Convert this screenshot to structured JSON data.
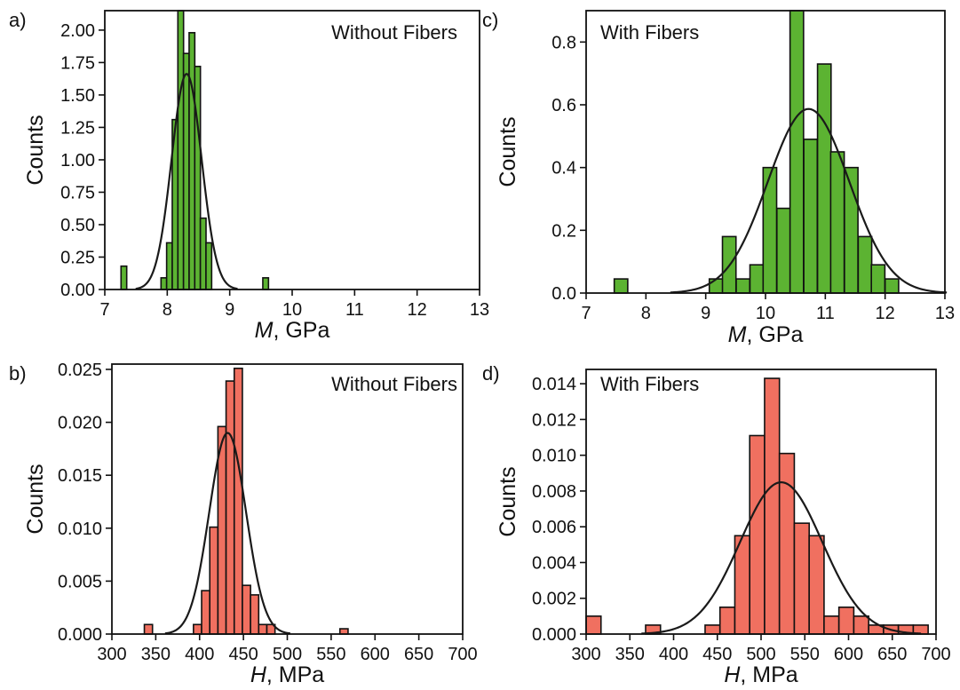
{
  "chart_data": [
    {
      "type": "bar",
      "panel_label": "a)",
      "title": "Without Fibers",
      "xlabel_var": "M",
      "xlabel_unit": ", GPa",
      "ylabel": "Counts",
      "xlim": [
        7,
        13
      ],
      "ylim": [
        0,
        2.15
      ],
      "xticks": [
        7,
        8,
        9,
        10,
        11,
        12,
        13
      ],
      "yticks": [
        0.0,
        0.25,
        0.5,
        0.75,
        1.0,
        1.25,
        1.5,
        1.75,
        2.0
      ],
      "ytick_labels": [
        "0.00",
        "0.25",
        "0.50",
        "0.75",
        "1.00",
        "1.25",
        "1.50",
        "1.75",
        "2.00"
      ],
      "bar_color": "#5cb332",
      "bin_width": 0.091,
      "bins": [
        {
          "x": 7.26,
          "y": 0.18
        },
        {
          "x": 7.9,
          "y": 0.09
        },
        {
          "x": 7.99,
          "y": 0.36
        },
        {
          "x": 8.08,
          "y": 1.31
        },
        {
          "x": 8.17,
          "y": 2.22
        },
        {
          "x": 8.26,
          "y": 1.82
        },
        {
          "x": 8.35,
          "y": 1.98
        },
        {
          "x": 8.44,
          "y": 1.72
        },
        {
          "x": 8.53,
          "y": 0.55
        },
        {
          "x": 8.62,
          "y": 0.36
        },
        {
          "x": 9.53,
          "y": 0.09
        }
      ],
      "fit": {
        "mean": 8.31,
        "sd": 0.24
      }
    },
    {
      "type": "bar",
      "panel_label": "c)",
      "title": "With Fibers",
      "xlabel_var": "M",
      "xlabel_unit": ", GPa",
      "ylabel": "Counts",
      "xlim": [
        7,
        13
      ],
      "ylim": [
        0,
        0.9
      ],
      "xticks": [
        7,
        8,
        9,
        10,
        11,
        12,
        13
      ],
      "yticks": [
        0.0,
        0.2,
        0.4,
        0.6,
        0.8
      ],
      "ytick_labels": [
        "0.0",
        "0.2",
        "0.4",
        "0.6",
        "0.8"
      ],
      "bar_color": "#5cb332",
      "bin_width": 0.226,
      "bins": [
        {
          "x": 7.47,
          "y": 0.045
        },
        {
          "x": 9.06,
          "y": 0.045
        },
        {
          "x": 9.28,
          "y": 0.18
        },
        {
          "x": 9.51,
          "y": 0.045
        },
        {
          "x": 9.74,
          "y": 0.09
        },
        {
          "x": 9.96,
          "y": 0.4
        },
        {
          "x": 10.19,
          "y": 0.27
        },
        {
          "x": 10.41,
          "y": 0.91
        },
        {
          "x": 10.64,
          "y": 0.49
        },
        {
          "x": 10.87,
          "y": 0.73
        },
        {
          "x": 11.09,
          "y": 0.45
        },
        {
          "x": 11.32,
          "y": 0.4
        },
        {
          "x": 11.55,
          "y": 0.18
        },
        {
          "x": 11.77,
          "y": 0.09
        },
        {
          "x": 12.0,
          "y": 0.045
        }
      ],
      "fit": {
        "mean": 10.72,
        "sd": 0.68
      }
    },
    {
      "type": "bar",
      "panel_label": "b)",
      "title": "Without Fibers",
      "xlabel_var": "H",
      "xlabel_unit": ", MPa",
      "ylabel": "Counts",
      "xlim": [
        300,
        700
      ],
      "ylim": [
        0,
        0.0255
      ],
      "xticks": [
        300,
        350,
        400,
        450,
        500,
        550,
        600,
        650,
        700
      ],
      "yticks": [
        0.0,
        0.005,
        0.01,
        0.015,
        0.02,
        0.025
      ],
      "ytick_labels": [
        "0.000",
        "0.005",
        "0.010",
        "0.015",
        "0.020",
        "0.025"
      ],
      "bar_color": "#f07060",
      "bin_width": 9.3,
      "bins": [
        {
          "x": 337.0,
          "y": 0.0009
        },
        {
          "x": 393.0,
          "y": 0.0009
        },
        {
          "x": 402.3,
          "y": 0.0041
        },
        {
          "x": 411.6,
          "y": 0.0101
        },
        {
          "x": 420.9,
          "y": 0.0196
        },
        {
          "x": 430.2,
          "y": 0.0239
        },
        {
          "x": 439.5,
          "y": 0.0251
        },
        {
          "x": 448.8,
          "y": 0.0046
        },
        {
          "x": 458.1,
          "y": 0.0037
        },
        {
          "x": 467.4,
          "y": 0.0009
        },
        {
          "x": 476.7,
          "y": 0.0009
        },
        {
          "x": 560.0,
          "y": 0.0005
        }
      ],
      "fit": {
        "mean": 432.0,
        "sd": 21.0
      }
    },
    {
      "type": "bar",
      "panel_label": "d)",
      "title": "With Fibers",
      "xlabel_var": "H",
      "xlabel_unit": ", MPa",
      "ylabel": "Counts",
      "xlim": [
        300,
        700
      ],
      "ylim": [
        0,
        0.0148
      ],
      "xticks": [
        300,
        350,
        400,
        450,
        500,
        550,
        600,
        650,
        700
      ],
      "yticks": [
        0.0,
        0.002,
        0.004,
        0.006,
        0.008,
        0.01,
        0.012,
        0.014
      ],
      "ytick_labels": [
        "0.000",
        "0.002",
        "0.004",
        "0.006",
        "0.008",
        "0.010",
        "0.012",
        "0.014"
      ],
      "bar_color": "#f07060",
      "bin_width": 17.0,
      "bins": [
        {
          "x": 300.0,
          "y": 0.001
        },
        {
          "x": 368.0,
          "y": 0.0005
        },
        {
          "x": 436.0,
          "y": 0.0005
        },
        {
          "x": 453.0,
          "y": 0.0015
        },
        {
          "x": 470.0,
          "y": 0.0055
        },
        {
          "x": 487.0,
          "y": 0.0111
        },
        {
          "x": 504.0,
          "y": 0.0143
        },
        {
          "x": 521.0,
          "y": 0.0101
        },
        {
          "x": 538.0,
          "y": 0.0062
        },
        {
          "x": 555.0,
          "y": 0.0055
        },
        {
          "x": 572.0,
          "y": 0.001
        },
        {
          "x": 589.0,
          "y": 0.0015
        },
        {
          "x": 606.0,
          "y": 0.001
        },
        {
          "x": 623.0,
          "y": 0.0005
        },
        {
          "x": 640.0,
          "y": 0.0005
        },
        {
          "x": 657.0,
          "y": 0.0005
        },
        {
          "x": 674.0,
          "y": 0.0005
        }
      ],
      "fit": {
        "mean": 523.0,
        "sd": 47.0
      }
    }
  ]
}
